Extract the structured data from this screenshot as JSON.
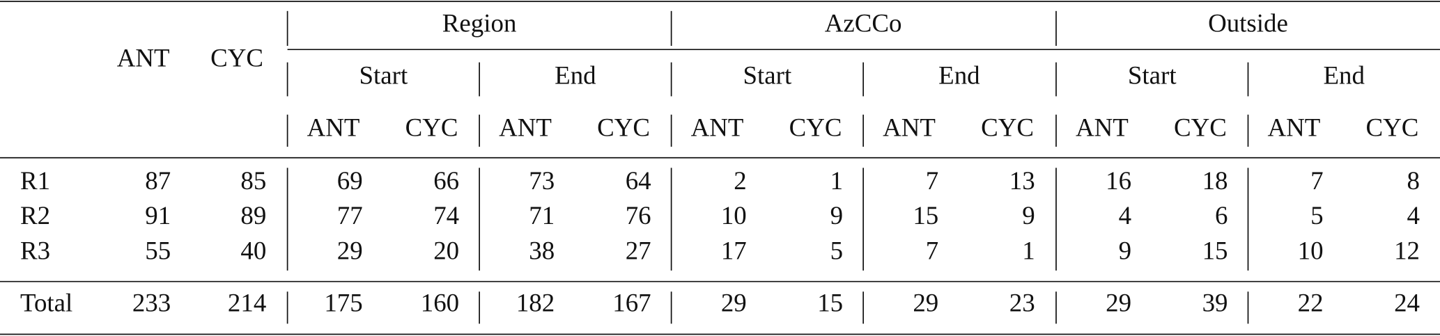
{
  "table": {
    "columns": [
      "ANT",
      "CYC"
    ],
    "groups": [
      {
        "label": "Region",
        "subgroups": [
          {
            "label": "Start",
            "columns": [
              "ANT",
              "CYC"
            ]
          },
          {
            "label": "End",
            "columns": [
              "ANT",
              "CYC"
            ]
          }
        ]
      },
      {
        "label": "AzCCo",
        "subgroups": [
          {
            "label": "Start",
            "columns": [
              "ANT",
              "CYC"
            ]
          },
          {
            "label": "End",
            "columns": [
              "ANT",
              "CYC"
            ]
          }
        ]
      },
      {
        "label": "Outside",
        "subgroups": [
          {
            "label": "Start",
            "columns": [
              "ANT",
              "CYC"
            ]
          },
          {
            "label": "End",
            "columns": [
              "ANT",
              "CYC"
            ]
          }
        ]
      }
    ],
    "rows": [
      {
        "label": "R1",
        "values": [
          87,
          85,
          69,
          66,
          73,
          64,
          2,
          1,
          7,
          13,
          16,
          18,
          7,
          8
        ]
      },
      {
        "label": "R2",
        "values": [
          91,
          89,
          77,
          74,
          71,
          76,
          10,
          9,
          15,
          9,
          4,
          6,
          5,
          4
        ]
      },
      {
        "label": "R3",
        "values": [
          55,
          40,
          29,
          20,
          38,
          27,
          17,
          5,
          7,
          1,
          9,
          15,
          10,
          12
        ]
      }
    ],
    "total": {
      "label": "Total",
      "values": [
        233,
        214,
        175,
        160,
        182,
        167,
        29,
        15,
        29,
        23,
        29,
        39,
        22,
        24
      ]
    }
  }
}
